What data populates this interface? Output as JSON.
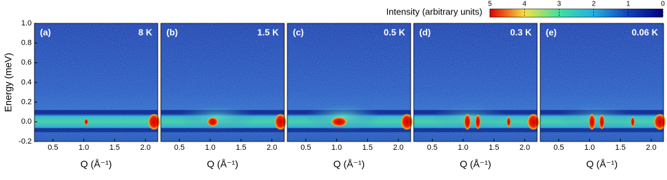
{
  "chart_data": [
    {
      "type": "heatmap",
      "panel": "(a)",
      "annotation": "8 K",
      "xlabel": "Q (Å⁻¹)",
      "ylabel": "Energy (meV)",
      "xlim": [
        0.2,
        2.2
      ],
      "xticks": [
        0.5,
        {
          "value": 1,
          "label": "1.0"
        },
        1.5,
        {
          "value": 2,
          "label": "2.0"
        }
      ],
      "ylim": [
        -0.2,
        1.0
      ],
      "yticks": [
        -0.2,
        {
          "value": 0,
          "label": "0.0"
        },
        0.2,
        0.4,
        0.6,
        0.8,
        {
          "value": 1,
          "label": "1.0"
        }
      ]
    },
    {
      "type": "heatmap",
      "panel": "(b)",
      "annotation": "1.5 K",
      "xlabel": "Q (Å⁻¹)",
      "xlim": [
        0.2,
        2.2
      ],
      "xticks": [
        0.5,
        {
          "value": 1,
          "label": "1.0"
        },
        1.5,
        {
          "value": 2,
          "label": "2.0"
        }
      ],
      "ylim": [
        -0.2,
        1.0
      ]
    },
    {
      "type": "heatmap",
      "panel": "(c)",
      "annotation": "0.5 K",
      "xlabel": "Q (Å⁻¹)",
      "xlim": [
        0.2,
        2.2
      ],
      "xticks": [
        0.5,
        {
          "value": 1,
          "label": "1.0"
        },
        1.5,
        {
          "value": 2,
          "label": "2.0"
        }
      ],
      "ylim": [
        -0.2,
        1.0
      ]
    },
    {
      "type": "heatmap",
      "panel": "(d)",
      "annotation": "0.3 K",
      "xlabel": "Q (Å⁻¹)",
      "xlim": [
        0.2,
        2.2
      ],
      "xticks": [
        0.5,
        {
          "value": 1,
          "label": "1.0"
        },
        1.5,
        {
          "value": 2,
          "label": "2.0"
        }
      ],
      "ylim": [
        -0.2,
        1.0
      ]
    },
    {
      "type": "heatmap",
      "panel": "(e)",
      "annotation": "0.06 K",
      "xlabel": "Q (Å⁻¹)",
      "xlim": [
        0.2,
        2.2
      ],
      "xticks": [
        0.5,
        {
          "value": 1,
          "label": "1.0"
        },
        1.5,
        {
          "value": 2,
          "label": "2.0"
        }
      ],
      "ylim": [
        -0.2,
        1.0
      ]
    }
  ],
  "colorbar": {
    "title": "Intensity (arbitrary units)",
    "lim": [
      5,
      0
    ],
    "ticks": [
      5,
      4,
      3,
      2,
      1,
      0
    ],
    "colors": [
      "#e00000",
      "#f8e040",
      "#40e0a0",
      "#20b0e0",
      "#1040c0",
      "#000080"
    ]
  }
}
